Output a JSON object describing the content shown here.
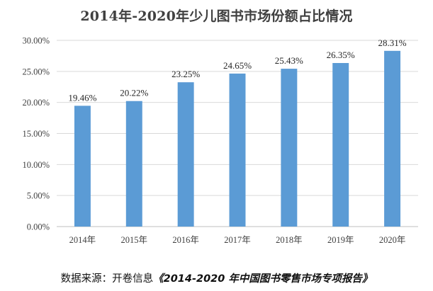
{
  "chart_data": {
    "type": "bar",
    "title": "2014年-2020年少儿图书市场份额占比情况",
    "categories": [
      "2014年",
      "2015年",
      "2016年",
      "2017年",
      "2018年",
      "2019年",
      "2020年"
    ],
    "values": [
      19.46,
      20.22,
      23.25,
      24.65,
      25.43,
      26.35,
      28.31
    ],
    "data_labels": [
      "19.46%",
      "20.22%",
      "23.25%",
      "24.65%",
      "25.43%",
      "26.35%",
      "28.31%"
    ],
    "y_ticks": [
      0,
      5,
      10,
      15,
      20,
      25,
      30
    ],
    "y_tick_labels": [
      "0.00%",
      "5.00%",
      "10.00%",
      "15.00%",
      "20.00%",
      "25.00%",
      "30.00%"
    ],
    "ylim": [
      0,
      30
    ],
    "xlabel": "",
    "ylabel": "",
    "grid": true,
    "bar_color": "#5b9bd5"
  },
  "source": {
    "prefix": "数据来源：开卷信息",
    "title": "《2014-2020 年中国图书零售市场专项报告》"
  }
}
